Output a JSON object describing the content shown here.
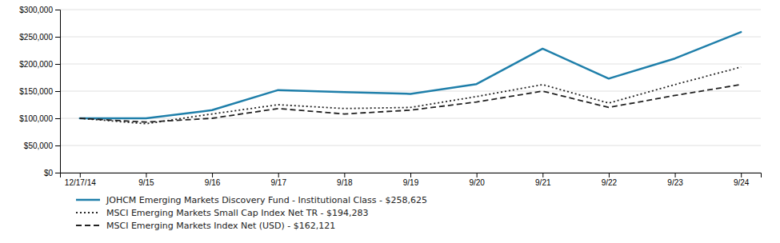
{
  "chart_data": {
    "type": "line",
    "categories": [
      "12/17/14",
      "9/15",
      "9/16",
      "9/17",
      "9/18",
      "9/19",
      "9/20",
      "9/21",
      "9/22",
      "9/23",
      "9/24"
    ],
    "series": [
      {
        "name": "JOHCM Emerging Markets Discovery Fund - Institutional Class - $258,625",
        "color": "#1f7faa",
        "line_style": "solid",
        "values": [
          100000,
          100000,
          115000,
          152000,
          148000,
          145000,
          163000,
          228000,
          173000,
          210000,
          258625
        ]
      },
      {
        "name": "MSCI Emerging Markets Small Cap Index Net TR - $194,283",
        "color": "#222222",
        "line_style": "dotted",
        "values": [
          100000,
          90000,
          108000,
          125000,
          118000,
          120000,
          140000,
          162000,
          128000,
          162000,
          194283
        ]
      },
      {
        "name": "MSCI Emerging Markets Index Net (USD) - $162,121",
        "color": "#222222",
        "line_style": "dashed",
        "values": [
          100000,
          93000,
          100000,
          118000,
          108000,
          115000,
          130000,
          150000,
          120000,
          142000,
          162121
        ]
      }
    ],
    "ylim": [
      0,
      300000
    ],
    "yticks": [
      {
        "value": 0,
        "label": "$0"
      },
      {
        "value": 50000,
        "label": "$50,000"
      },
      {
        "value": 100000,
        "label": "$100,000"
      },
      {
        "value": 150000,
        "label": "$150,000"
      },
      {
        "value": 200000,
        "label": "$200,000"
      },
      {
        "value": 250000,
        "label": "$250,000"
      },
      {
        "value": 300000,
        "label": "$300,000"
      }
    ],
    "grid": true,
    "legend": "bottom"
  }
}
